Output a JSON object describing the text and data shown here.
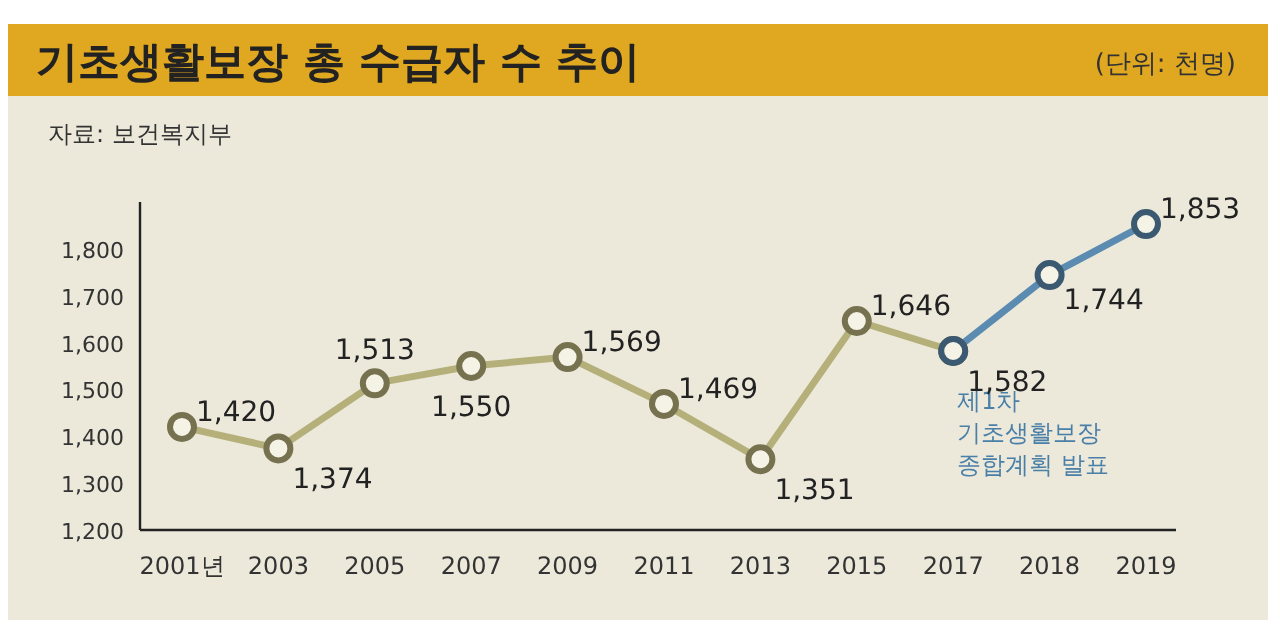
{
  "chart_data": {
    "type": "line",
    "title": "기초생활보장 총 수급자 수 추이",
    "ylabel": "(단위: 천명)",
    "categories": [
      "2001년",
      "2003",
      "2005",
      "2007",
      "2009",
      "2011",
      "2013",
      "2015",
      "2017",
      "2018",
      "2019"
    ],
    "series": [
      {
        "color": "#b5b07a",
        "values": [
          1420,
          1374,
          1513,
          1550,
          1569,
          1469,
          1351,
          1646,
          1582,
          null,
          null
        ],
        "value_labels": [
          "1,420",
          "1,374",
          "1,513",
          "1,550",
          "1,569",
          "1,469",
          "1,351",
          "1,646",
          null,
          null,
          null
        ]
      },
      {
        "color": "#5b8bb0",
        "values": [
          null,
          null,
          null,
          null,
          null,
          null,
          null,
          null,
          1582,
          1744,
          1853
        ],
        "value_labels": [
          null,
          null,
          null,
          null,
          null,
          null,
          null,
          null,
          "1,582",
          "1,744",
          "1,853"
        ]
      }
    ],
    "annotations": [
      "자료: 보건복지부",
      {
        "text": "제1차\n기초생활보장\n종합계획 발표",
        "x": "2017",
        "y": 1582
      }
    ],
    "ylim": [
      1200,
      1900
    ],
    "yticks": [
      {
        "value": 1200,
        "label": "1,200"
      },
      {
        "value": 1300,
        "label": "1,300"
      },
      {
        "value": 1400,
        "label": "1,400"
      },
      {
        "value": 1500,
        "label": "1,500"
      },
      {
        "value": 1600,
        "label": "1,600"
      },
      {
        "value": 1700,
        "label": "1,700"
      },
      {
        "value": 1800,
        "label": "1,800"
      }
    ],
    "marker": "circle",
    "grid": false
  }
}
